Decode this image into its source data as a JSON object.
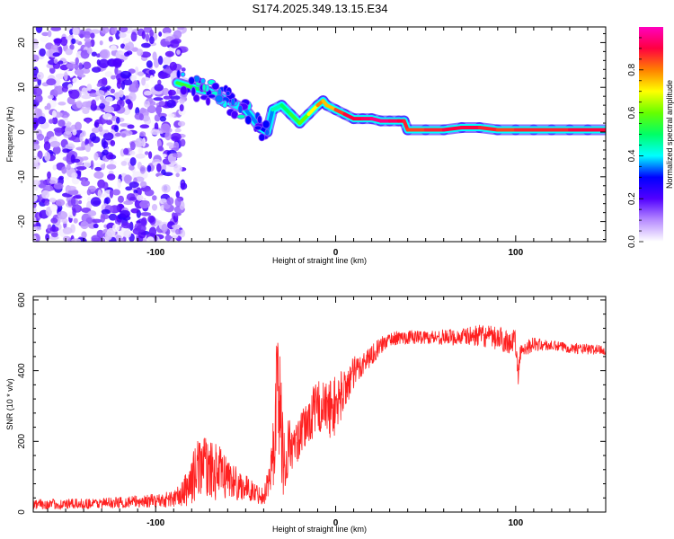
{
  "chart_data": [
    {
      "type": "heatmap",
      "title": "S174.2025.349.13.15.E34",
      "xlabel": "Height of straight line (km)",
      "ylabel": "Frequency (Hz)",
      "xlim": [
        -168,
        150
      ],
      "ylim": [
        -24.5,
        23.5
      ],
      "xticks": [
        -100,
        0,
        100
      ],
      "yticks": [
        -20,
        -10,
        0,
        10,
        20
      ],
      "colorbar": {
        "label": "Normalized spectral amplitude",
        "range": [
          0.0,
          1.0
        ],
        "ticks": [
          0.0,
          0.2,
          0.4,
          0.6,
          0.8
        ],
        "colors": [
          "#ffffff",
          "#b78cff",
          "#5200ff",
          "#0000ff",
          "#00ffff",
          "#00ff66",
          "#66ff00",
          "#ffff00",
          "#ff8000",
          "#ff0040",
          "#ff00bf"
        ]
      },
      "ridge": {
        "x": [
          -88,
          -80,
          -70,
          -60,
          -50,
          -42,
          -38,
          -35,
          -30,
          -25,
          -20,
          -15,
          -10,
          -7,
          -5,
          0,
          5,
          10,
          15,
          20,
          25,
          30,
          35,
          38,
          40,
          50,
          60,
          70,
          80,
          90,
          100,
          110,
          120,
          130,
          140,
          150
        ],
        "y": [
          11,
          10,
          9,
          7,
          5,
          1,
          0,
          5,
          6,
          4,
          2,
          4,
          6,
          7,
          6,
          5,
          4,
          3,
          3,
          3,
          2.5,
          2.5,
          2.5,
          2.5,
          0.5,
          0.5,
          0.5,
          1,
          1,
          0.5,
          0.5,
          0.5,
          0.5,
          0.5,
          0.5,
          0.5
        ],
        "amplitude": [
          0.6,
          0.5,
          0.5,
          0.4,
          0.4,
          0.3,
          0.3,
          0.4,
          0.5,
          0.5,
          0.6,
          0.6,
          0.8,
          0.8,
          0.7,
          0.8,
          0.9,
          0.9,
          0.9,
          0.95,
          0.95,
          0.95,
          0.9,
          0.9,
          0.85,
          0.85,
          0.9,
          0.9,
          0.9,
          0.85,
          0.85,
          0.9,
          0.85,
          0.9,
          0.9,
          0.9
        ]
      },
      "noise_region_x": [
        -168,
        -88
      ],
      "noise_amplitude_max": 0.25
    },
    {
      "type": "line",
      "xlabel": "Height of straight line (km)",
      "ylabel": "SNR (10 * v/v)",
      "xlim": [
        -168,
        150
      ],
      "ylim": [
        0,
        610
      ],
      "xticks": [
        -100,
        0,
        100
      ],
      "yticks": [
        0,
        200,
        400,
        600
      ],
      "line_color": "#ff2020",
      "series": [
        {
          "name": "SNR",
          "x": [
            -168,
            -150,
            -130,
            -110,
            -100,
            -90,
            -85,
            -80,
            -75,
            -70,
            -65,
            -60,
            -55,
            -50,
            -45,
            -40,
            -36,
            -34,
            -32,
            -30,
            -28,
            -26,
            -24,
            -20,
            -15,
            -10,
            -5,
            0,
            5,
            10,
            15,
            20,
            25,
            30,
            40,
            50,
            60,
            70,
            80,
            90,
            100,
            101,
            103,
            110,
            120,
            130,
            140,
            150
          ],
          "y": [
            22,
            22,
            25,
            30,
            32,
            38,
            50,
            90,
            140,
            120,
            110,
            100,
            80,
            70,
            55,
            45,
            110,
            220,
            400,
            200,
            120,
            200,
            175,
            210,
            260,
            300,
            290,
            300,
            350,
            390,
            420,
            445,
            470,
            490,
            495,
            495,
            495,
            495,
            500,
            490,
            480,
            380,
            460,
            475,
            470,
            465,
            460,
            460
          ],
          "noise_amplitude": [
            15,
            15,
            15,
            18,
            20,
            25,
            40,
            70,
            90,
            80,
            80,
            60,
            50,
            35,
            30,
            25,
            60,
            150,
            210,
            150,
            80,
            80,
            60,
            60,
            70,
            80,
            80,
            90,
            60,
            50,
            35,
            30,
            25,
            20,
            20,
            20,
            22,
            25,
            30,
            35,
            35,
            50,
            25,
            20,
            15,
            15,
            15,
            15
          ]
        }
      ]
    }
  ]
}
